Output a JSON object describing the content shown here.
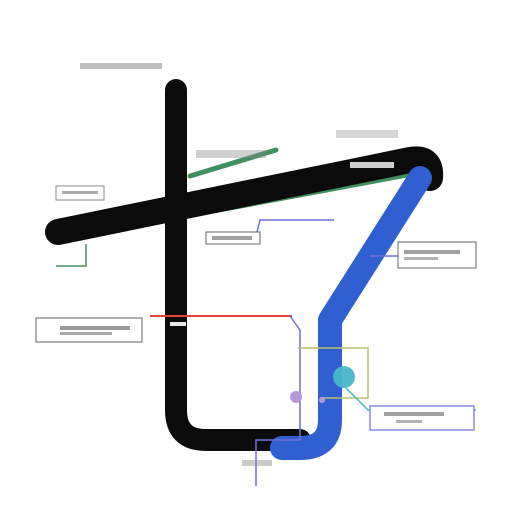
{
  "diagram": {
    "title": "",
    "nodes": [
      {
        "id": "junction-teal",
        "label": ""
      },
      {
        "id": "junction-violet",
        "label": ""
      }
    ],
    "callouts": [
      {
        "id": "callout-left-mid",
        "label": ""
      },
      {
        "id": "callout-right-top",
        "label": ""
      },
      {
        "id": "callout-right-bottom",
        "label": ""
      },
      {
        "id": "callout-center",
        "label": ""
      },
      {
        "id": "callout-top-left",
        "label": ""
      }
    ]
  },
  "colors": {
    "black_line": "#0b0b0b",
    "blue_line": "#2f5fd0",
    "green_line": "#3f8f5f",
    "red_line": "#e0453a",
    "violet_line": "#6f6fd8",
    "teal_node": "#49b7c8",
    "violet_node": "#b69ad6"
  },
  "icons": {
    "junction": "circle",
    "callout": "rectangle-box"
  }
}
